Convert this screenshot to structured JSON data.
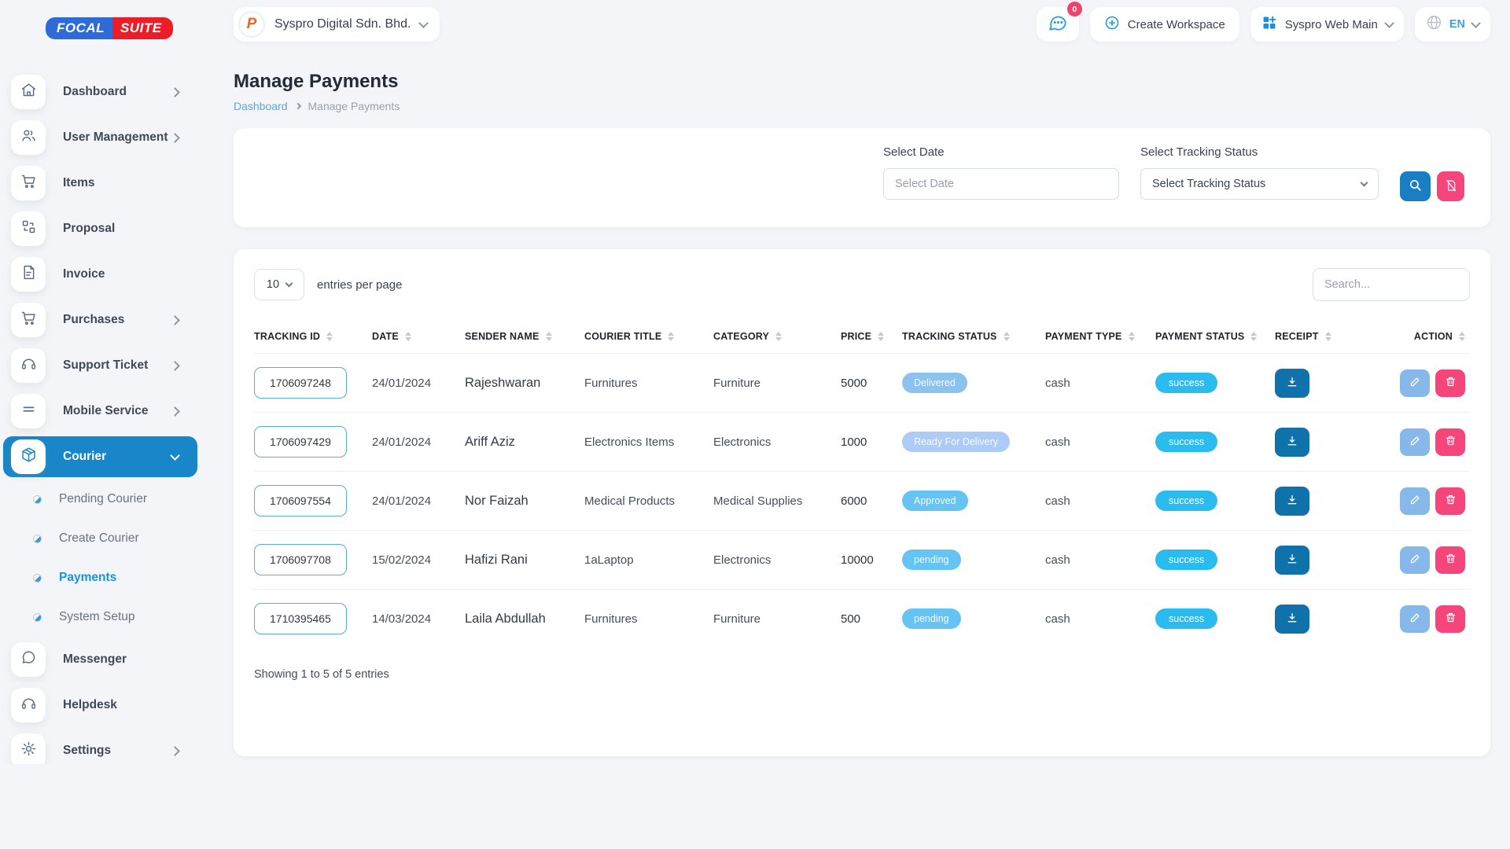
{
  "brand": {
    "logo_left": "FOCAL",
    "logo_right": "SUITE"
  },
  "header": {
    "workspace_name": "Syspro Digital Sdn. Bhd.",
    "workspace_logo_letter": "P",
    "messages_badge": "0",
    "create_workspace_label": "Create Workspace",
    "app_menu_label": "Syspro Web Main",
    "language_code": "EN"
  },
  "sidebar": {
    "items": [
      {
        "label": "Dashboard",
        "icon": "home",
        "chevron": "right"
      },
      {
        "label": "User Management",
        "icon": "users",
        "chevron": "right"
      },
      {
        "label": "Items",
        "icon": "cart",
        "chevron": ""
      },
      {
        "label": "Proposal",
        "icon": "proposal",
        "chevron": ""
      },
      {
        "label": "Invoice",
        "icon": "invoice",
        "chevron": ""
      },
      {
        "label": "Purchases",
        "icon": "cart",
        "chevron": "right"
      },
      {
        "label": "Support Ticket",
        "icon": "headset",
        "chevron": "right"
      },
      {
        "label": "Mobile Service",
        "icon": "lines",
        "chevron": "right"
      },
      {
        "label": "Courier",
        "icon": "package",
        "chevron": "down",
        "active": true
      }
    ],
    "courier_children": [
      {
        "label": "Pending Courier",
        "active": false
      },
      {
        "label": "Create Courier",
        "active": false
      },
      {
        "label": "Payments",
        "active": true
      },
      {
        "label": "System Setup",
        "active": false
      }
    ],
    "items_after": [
      {
        "label": "Messenger",
        "icon": "chat",
        "chevron": ""
      },
      {
        "label": "Helpdesk",
        "icon": "headset",
        "chevron": ""
      },
      {
        "label": "Settings",
        "icon": "gear",
        "chevron": "right"
      }
    ]
  },
  "page": {
    "title": "Manage Payments",
    "breadcrumb_home": "Dashboard",
    "breadcrumb_current": "Manage Payments"
  },
  "filters": {
    "date_label": "Select Date",
    "date_placeholder": "Select Date",
    "status_label": "Select Tracking Status",
    "status_value": "Select Tracking Status"
  },
  "table": {
    "entries_value": "10",
    "entries_text": "entries per page",
    "search_placeholder": "Search...",
    "columns": [
      "TRACKING ID",
      "DATE",
      "SENDER NAME",
      "COURIER TITLE",
      "CATEGORY",
      "PRICE",
      "TRACKING STATUS",
      "PAYMENT TYPE",
      "PAYMENT STATUS",
      "RECEIPT",
      "ACTION"
    ],
    "rows": [
      {
        "tracking_id": "1706097248",
        "date": "24/01/2024",
        "sender": "Rajeshwaran",
        "courier_title": "Furnitures",
        "category": "Furniture",
        "price": "5000",
        "tracking_status": "Delivered",
        "tracking_status_color": "#8cc2f0",
        "payment_type": "cash",
        "payment_status": "success"
      },
      {
        "tracking_id": "1706097429",
        "date": "24/01/2024",
        "sender": "Ariff Aziz",
        "courier_title": "Electronics Items",
        "category": "Electronics",
        "price": "1000",
        "tracking_status": "Ready For Delivery",
        "tracking_status_color": "#adcbf4",
        "payment_type": "cash",
        "payment_status": "success"
      },
      {
        "tracking_id": "1706097554",
        "date": "24/01/2024",
        "sender": "Nor Faizah",
        "courier_title": "Medical Products",
        "category": "Medical Supplies",
        "price": "6000",
        "tracking_status": "Approved",
        "tracking_status_color": "#65c4f2",
        "payment_type": "cash",
        "payment_status": "success"
      },
      {
        "tracking_id": "1706097708",
        "date": "15/02/2024",
        "sender": "Hafizi Rani",
        "courier_title": "1aLaptop",
        "category": "Electronics",
        "price": "10000",
        "tracking_status": "pending",
        "tracking_status_color": "#65c4f2",
        "payment_type": "cash",
        "payment_status": "success"
      },
      {
        "tracking_id": "1710395465",
        "date": "14/03/2024",
        "sender": "Laila Abdullah",
        "courier_title": "Furnitures",
        "category": "Furniture",
        "price": "500",
        "tracking_status": "pending",
        "tracking_status_color": "#65c4f2",
        "payment_type": "cash",
        "payment_status": "success"
      }
    ],
    "footer_text": "Showing 1 to 5 of 5 entries"
  },
  "colors": {
    "primary_blue": "#1886c9",
    "bright_link_blue": "#1593dd",
    "success_badge": "#2abcee",
    "receipt_button": "#0f72ab",
    "edit_button": "#86b9ea",
    "danger_pink": "#f5457a",
    "notification_badge": "#f1416c",
    "logo_blue": "#2e6ad8",
    "logo_red": "#ee1c25"
  }
}
